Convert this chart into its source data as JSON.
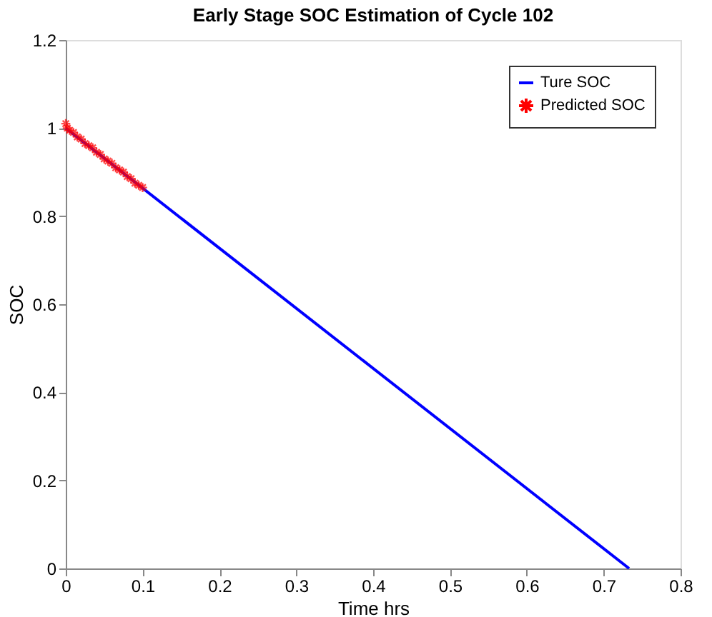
{
  "chart_data": {
    "type": "line",
    "title": "Early Stage SOC Estimation of Cycle 102",
    "xlabel": "Time hrs",
    "ylabel": "SOC",
    "xlim": [
      0,
      0.8
    ],
    "xticks": [
      0,
      0.1,
      0.2,
      0.3,
      0.4,
      0.5,
      0.6,
      0.7,
      0.8
    ],
    "ylim": [
      0,
      1.2
    ],
    "yticks": [
      0,
      0.2,
      0.4,
      0.6,
      0.8,
      1,
      1.2
    ],
    "legend": "top right",
    "grid": false,
    "series": [
      {
        "name": "Ture SOC",
        "color": "#0000ff",
        "line_style": "solid",
        "marker": "none",
        "x": [
          0,
          0.733
        ],
        "values": [
          1,
          0
        ]
      },
      {
        "name": "Predicted SOC",
        "color": "#ff0000",
        "type": "scatter",
        "marker": "cross",
        "x": [
          0,
          0.002,
          0.005,
          0.01,
          0.015,
          0.02,
          0.025,
          0.03,
          0.035,
          0.04,
          0.045,
          0.05,
          0.055,
          0.06,
          0.065,
          0.07,
          0.075,
          0.08,
          0.085,
          0.09,
          0.095,
          0.1
        ],
        "values": [
          1.01,
          1.0,
          0.995,
          0.99,
          0.98,
          0.975,
          0.965,
          0.96,
          0.955,
          0.945,
          0.94,
          0.93,
          0.925,
          0.92,
          0.91,
          0.905,
          0.9,
          0.89,
          0.885,
          0.875,
          0.87,
          0.865
        ]
      }
    ]
  }
}
